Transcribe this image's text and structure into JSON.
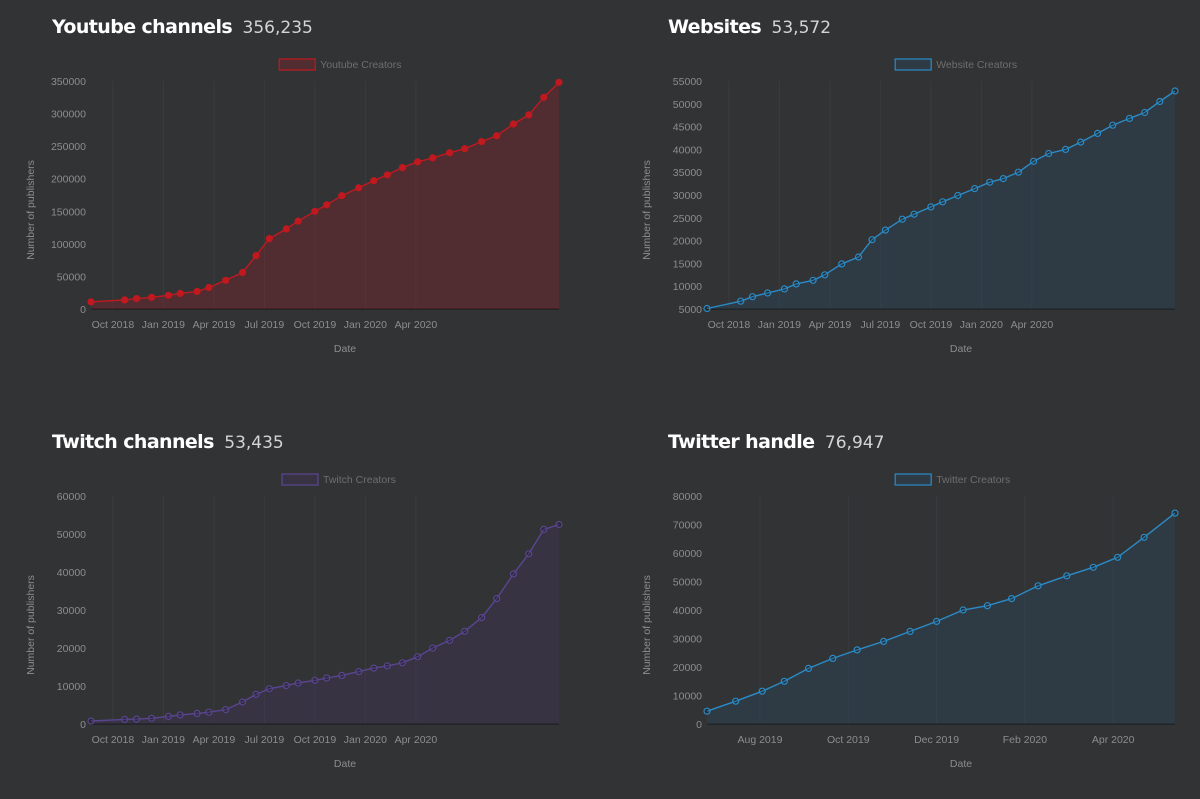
{
  "panels": [
    {
      "title": "Youtube channels",
      "count": "356,235",
      "color": "#c0191f",
      "fill": "rgba(192,25,31,0.22)",
      "legend": "Youtube Creators",
      "chart_data": {
        "type": "area",
        "xlabel": "Date",
        "ylabel": "Number of publishers",
        "ylim": [
          0,
          350000
        ],
        "yticks": [
          0,
          50000,
          100000,
          150000,
          200000,
          250000,
          300000,
          350000
        ],
        "xticks": [
          "Oct 2018",
          "Jan 2019",
          "Apr 2019",
          "Jul 2019",
          "Oct 2019",
          "Jan 2020",
          "Apr 2020"
        ],
        "legend_position": "top-center",
        "series": [
          {
            "name": "Youtube Creators",
            "points": [
              [
                -0.3,
                11000
              ],
              [
                1.7,
                14000
              ],
              [
                2.4,
                16000
              ],
              [
                3.3,
                18000
              ],
              [
                4.3,
                21000
              ],
              [
                5.0,
                24000
              ],
              [
                6.0,
                27000
              ],
              [
                6.7,
                33000
              ],
              [
                7.7,
                44000
              ],
              [
                8.7,
                56000
              ],
              [
                9.5,
                82000
              ],
              [
                10.3,
                108000
              ],
              [
                11.3,
                123000
              ],
              [
                12.0,
                135000
              ],
              [
                13.0,
                150000
              ],
              [
                13.7,
                160000
              ],
              [
                14.6,
                174000
              ],
              [
                15.6,
                186000
              ],
              [
                16.5,
                197000
              ],
              [
                17.3,
                206000
              ],
              [
                18.2,
                217000
              ],
              [
                19.1,
                226000
              ],
              [
                20.0,
                232000
              ],
              [
                21.0,
                240000
              ],
              [
                21.9,
                246000
              ],
              [
                22.9,
                257000
              ],
              [
                23.8,
                266000
              ],
              [
                24.8,
                284000
              ],
              [
                25.7,
                298000
              ],
              [
                26.6,
                325000
              ],
              [
                27.5,
                348000
              ]
            ]
          }
        ]
      }
    },
    {
      "title": "Websites",
      "count": "53,572",
      "color": "#2b8bc7",
      "fill": "rgba(40,75,100,0.35)",
      "legend": "Website Creators",
      "chart_data": {
        "type": "area",
        "xlabel": "Date",
        "ylabel": "Number of publishers",
        "ylim": [
          5000,
          55000
        ],
        "yticks": [
          5000,
          10000,
          15000,
          20000,
          25000,
          30000,
          35000,
          40000,
          45000,
          50000,
          55000
        ],
        "xticks": [
          "Oct 2018",
          "Jan 2019",
          "Apr 2019",
          "Jul 2019",
          "Oct 2019",
          "Jan 2020",
          "Apr 2020"
        ],
        "legend_position": "top-center",
        "series": [
          {
            "name": "Website Creators",
            "points": [
              [
                -0.3,
                5100
              ],
              [
                1.7,
                6700
              ],
              [
                2.4,
                7700
              ],
              [
                3.3,
                8500
              ],
              [
                4.3,
                9400
              ],
              [
                5.0,
                10500
              ],
              [
                6.0,
                11300
              ],
              [
                6.7,
                12500
              ],
              [
                7.7,
                14900
              ],
              [
                8.7,
                16400
              ],
              [
                9.5,
                20200
              ],
              [
                10.3,
                22300
              ],
              [
                11.3,
                24700
              ],
              [
                12.0,
                25800
              ],
              [
                13.0,
                27400
              ],
              [
                13.7,
                28500
              ],
              [
                14.6,
                29900
              ],
              [
                15.6,
                31400
              ],
              [
                16.5,
                32800
              ],
              [
                17.3,
                33600
              ],
              [
                18.2,
                35000
              ],
              [
                19.1,
                37400
              ],
              [
                20.0,
                39100
              ],
              [
                21.0,
                40000
              ],
              [
                21.9,
                41600
              ],
              [
                22.9,
                43500
              ],
              [
                23.8,
                45300
              ],
              [
                24.8,
                46800
              ],
              [
                25.7,
                48100
              ],
              [
                26.6,
                50500
              ],
              [
                27.5,
                52800
              ]
            ]
          }
        ]
      }
    },
    {
      "title": "Twitch channels",
      "count": "53,435",
      "color": "#5a4590",
      "fill": "rgba(70,50,110,0.25)",
      "legend": "Twitch Creators",
      "chart_data": {
        "type": "area",
        "xlabel": "Date",
        "ylabel": "Number of publishers",
        "ylim": [
          0,
          60000
        ],
        "yticks": [
          0,
          10000,
          20000,
          30000,
          40000,
          50000,
          60000
        ],
        "xticks": [
          "Oct 2018",
          "Jan 2019",
          "Apr 2019",
          "Jul 2019",
          "Oct 2019",
          "Jan 2020",
          "Apr 2020"
        ],
        "legend_position": "top-center",
        "series": [
          {
            "name": "Twitch Creators",
            "points": [
              [
                -0.3,
                800
              ],
              [
                1.7,
                1200
              ],
              [
                2.4,
                1300
              ],
              [
                3.3,
                1500
              ],
              [
                4.3,
                2000
              ],
              [
                5.0,
                2400
              ],
              [
                6.0,
                2800
              ],
              [
                6.7,
                3100
              ],
              [
                7.7,
                3800
              ],
              [
                8.7,
                5800
              ],
              [
                9.5,
                7800
              ],
              [
                10.3,
                9300
              ],
              [
                11.3,
                10100
              ],
              [
                12.0,
                10800
              ],
              [
                13.0,
                11500
              ],
              [
                13.7,
                12100
              ],
              [
                14.6,
                12800
              ],
              [
                15.6,
                13800
              ],
              [
                16.5,
                14700
              ],
              [
                17.3,
                15300
              ],
              [
                18.2,
                16100
              ],
              [
                19.1,
                17700
              ],
              [
                20.0,
                20000
              ],
              [
                21.0,
                22000
              ],
              [
                21.9,
                24400
              ],
              [
                22.9,
                28000
              ],
              [
                23.8,
                33000
              ],
              [
                24.8,
                39500
              ],
              [
                25.7,
                44800
              ],
              [
                26.6,
                51200
              ],
              [
                27.5,
                52500
              ]
            ]
          }
        ]
      }
    },
    {
      "title": "Twitter handle",
      "count": "76,947",
      "color": "#2b8bc7",
      "fill": "rgba(40,75,100,0.35)",
      "legend": "Twitter Creators",
      "chart_data": {
        "type": "area",
        "xlabel": "Date",
        "ylabel": "Number of publishers",
        "ylim": [
          0,
          80000
        ],
        "yticks": [
          0,
          10000,
          20000,
          30000,
          40000,
          50000,
          60000,
          70000,
          80000
        ],
        "xticks": [
          "Aug 2019",
          "Oct 2019",
          "Dec 2019",
          "Feb 2020",
          "Apr 2020"
        ],
        "legend_position": "top-center",
        "series": [
          {
            "name": "Twitter Creators",
            "points": [
              [
                -0.2,
                4500
              ],
              [
                0.45,
                8000
              ],
              [
                1.05,
                11500
              ],
              [
                1.55,
                15000
              ],
              [
                2.1,
                19500
              ],
              [
                2.65,
                23000
              ],
              [
                3.2,
                26000
              ],
              [
                3.8,
                29000
              ],
              [
                4.4,
                32500
              ],
              [
                5.0,
                36000
              ],
              [
                5.6,
                40000
              ],
              [
                6.15,
                41500
              ],
              [
                6.7,
                44000
              ],
              [
                7.3,
                48500
              ],
              [
                7.95,
                52000
              ],
              [
                8.55,
                55000
              ],
              [
                9.1,
                58500
              ],
              [
                9.7,
                65500
              ],
              [
                10.4,
                74000
              ]
            ]
          }
        ]
      }
    }
  ]
}
